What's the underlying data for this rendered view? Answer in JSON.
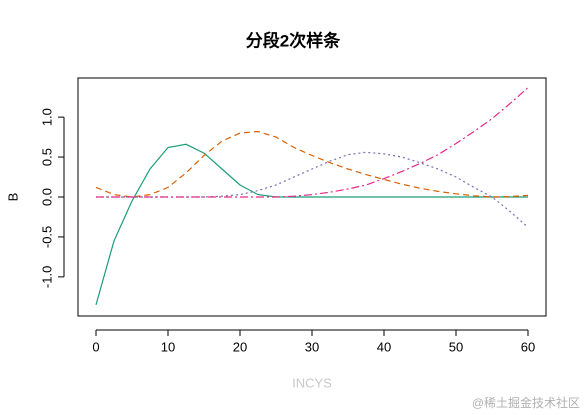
{
  "chart_data": {
    "type": "line",
    "title": "分段2次样条",
    "xlabel": "INCYS",
    "ylabel": "B",
    "watermark": "@稀土掘金技术社区",
    "x": [
      0,
      2.5,
      5,
      7.5,
      10,
      12.5,
      15,
      17.5,
      20,
      22.5,
      25,
      27.5,
      30,
      32.5,
      35,
      37.5,
      40,
      42.5,
      45,
      47.5,
      50,
      52.5,
      55,
      57.5,
      60
    ],
    "series": [
      {
        "color": "#1b9e77",
        "dash": "solid",
        "values": [
          -1.35,
          -0.55,
          -0.05,
          0.35,
          0.62,
          0.66,
          0.55,
          0.35,
          0.15,
          0.03,
          0,
          0,
          0,
          0,
          0,
          0,
          0,
          0,
          0,
          0,
          0,
          0,
          0,
          0,
          0
        ]
      },
      {
        "color": "#d95f02",
        "dash": "dashed",
        "values": [
          0.12,
          0.03,
          0,
          0.03,
          0.12,
          0.3,
          0.52,
          0.7,
          0.8,
          0.82,
          0.75,
          0.62,
          0.52,
          0.43,
          0.35,
          0.28,
          0.22,
          0.16,
          0.11,
          0.07,
          0.04,
          0.015,
          0,
          0.005,
          0.02
        ]
      },
      {
        "color": "#7570b3",
        "dash": "dotted",
        "values": [
          0,
          0,
          0,
          0,
          0,
          0,
          0,
          0.01,
          0.03,
          0.08,
          0.15,
          0.25,
          0.35,
          0.45,
          0.53,
          0.56,
          0.54,
          0.5,
          0.43,
          0.35,
          0.25,
          0.12,
          0,
          -0.18,
          -0.38
        ]
      },
      {
        "color": "#e7298a",
        "dash": "dotdash",
        "values": [
          0,
          0,
          0,
          0,
          0,
          0,
          0,
          0,
          0,
          0,
          0,
          0.01,
          0.03,
          0.06,
          0.1,
          0.15,
          0.23,
          0.32,
          0.42,
          0.53,
          0.67,
          0.82,
          0.98,
          1.17,
          1.37
        ]
      }
    ],
    "xlim": [
      -2.5,
      62.5
    ],
    "xticks": [
      0,
      10,
      20,
      30,
      40,
      50,
      60
    ],
    "ylim": [
      -1.49,
      1.49
    ],
    "yticks": [
      {
        "value": -1,
        "label": "-1.0"
      },
      -0.5,
      {
        "value": 0,
        "label": "0.0"
      },
      0.5,
      {
        "value": 1,
        "label": "1.0"
      }
    ]
  }
}
